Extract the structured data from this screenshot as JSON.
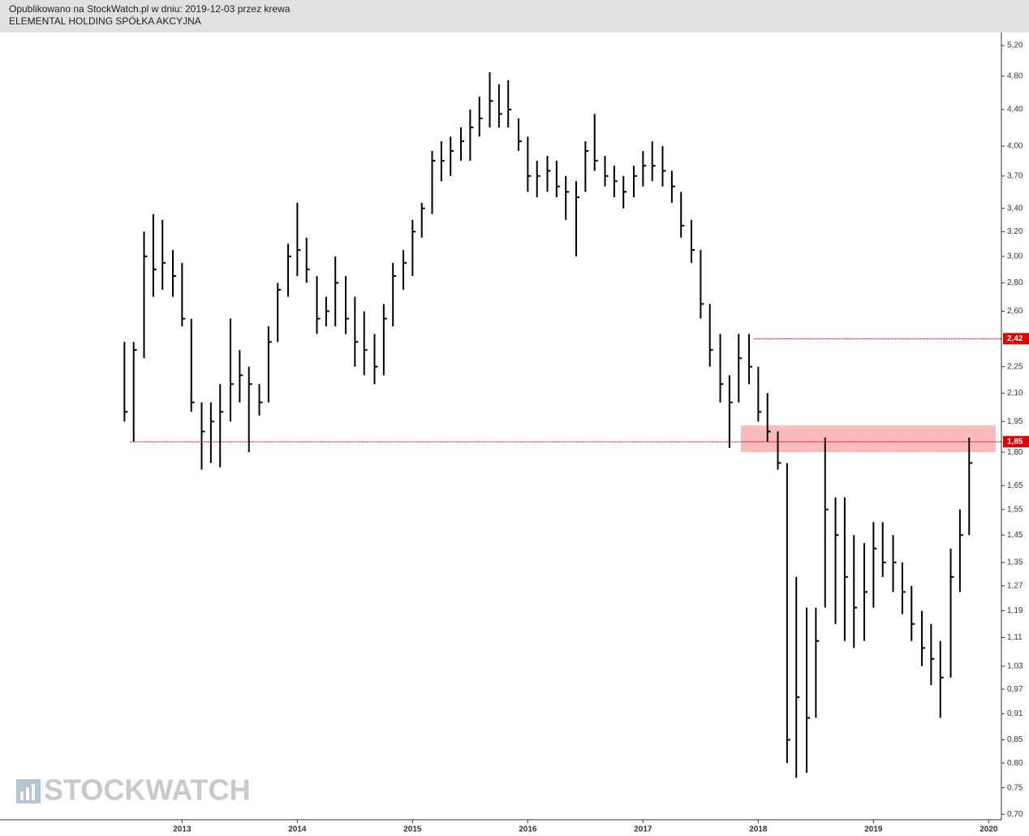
{
  "header": {
    "published": "Opublikowano na StockWatch.pl w dniu: 2019-12-03 przez krewa",
    "instrument": "ELEMENTAL HOLDING SPÓŁKA AKCYJNA"
  },
  "watermark": "STOCKWATCH",
  "chart_data": {
    "type": "hlc",
    "log_scale": true,
    "color": "#000000",
    "xlim": [
      2011.42,
      2020.11
    ],
    "xticks": [
      2013,
      2014,
      2015,
      2016,
      2017,
      2018,
      2019,
      2020
    ],
    "ylim": [
      0.69,
      5.38
    ],
    "yticks": [
      {
        "value": 5.2,
        "label": "5,20"
      },
      {
        "value": 4.8,
        "label": "4,80"
      },
      {
        "value": 4.4,
        "label": "4,40"
      },
      {
        "value": 4.0,
        "label": "4,00"
      },
      {
        "value": 3.7,
        "label": "3,70"
      },
      {
        "value": 3.4,
        "label": "3,40"
      },
      {
        "value": 3.2,
        "label": "3,20"
      },
      {
        "value": 3.0,
        "label": "3,00"
      },
      {
        "value": 2.8,
        "label": "2,80"
      },
      {
        "value": 2.6,
        "label": "2,60"
      },
      {
        "value": 2.25,
        "label": "2,25"
      },
      {
        "value": 2.1,
        "label": "2,10"
      },
      {
        "value": 1.95,
        "label": "1,95"
      },
      {
        "value": 1.8,
        "label": "1,80"
      },
      {
        "value": 1.65,
        "label": "1,65"
      },
      {
        "value": 1.55,
        "label": "1,55"
      },
      {
        "value": 1.45,
        "label": "1,45"
      },
      {
        "value": 1.35,
        "label": "1,35"
      },
      {
        "value": 1.27,
        "label": "1,27"
      },
      {
        "value": 1.19,
        "label": "1,19"
      },
      {
        "value": 1.11,
        "label": "1,11"
      },
      {
        "value": 1.03,
        "label": "1,03"
      },
      {
        "value": 0.97,
        "label": "0,97"
      },
      {
        "value": 0.91,
        "label": "0,91"
      },
      {
        "value": 0.85,
        "label": "0,85"
      },
      {
        "value": 0.8,
        "label": "0,80"
      },
      {
        "value": 0.75,
        "label": "0,75"
      },
      {
        "value": 0.7,
        "label": "0,70"
      }
    ],
    "x": [
      2012.5,
      2012.58,
      2012.67,
      2012.75,
      2012.83,
      2012.92,
      2013.0,
      2013.08,
      2013.17,
      2013.25,
      2013.33,
      2013.42,
      2013.5,
      2013.58,
      2013.67,
      2013.75,
      2013.83,
      2013.92,
      2014.0,
      2014.08,
      2014.17,
      2014.25,
      2014.33,
      2014.42,
      2014.5,
      2014.58,
      2014.67,
      2014.75,
      2014.83,
      2014.92,
      2015.0,
      2015.08,
      2015.17,
      2015.25,
      2015.33,
      2015.42,
      2015.5,
      2015.58,
      2015.67,
      2015.75,
      2015.83,
      2015.92,
      2016.0,
      2016.08,
      2016.17,
      2016.25,
      2016.33,
      2016.42,
      2016.5,
      2016.58,
      2016.67,
      2016.75,
      2016.83,
      2016.92,
      2017.0,
      2017.08,
      2017.17,
      2017.25,
      2017.33,
      2017.42,
      2017.5,
      2017.58,
      2017.67,
      2017.75,
      2017.83,
      2017.92,
      2018.0,
      2018.08,
      2018.17,
      2018.25,
      2018.33,
      2018.42,
      2018.5,
      2018.58,
      2018.67,
      2018.75,
      2018.83,
      2018.92,
      2019.0,
      2019.08,
      2019.17,
      2019.25,
      2019.33,
      2019.42,
      2019.5,
      2019.58,
      2019.67,
      2019.75,
      2019.83
    ],
    "high": [
      2.4,
      2.4,
      3.2,
      3.35,
      3.3,
      3.05,
      2.95,
      2.55,
      2.05,
      2.05,
      2.15,
      2.55,
      2.35,
      2.25,
      2.15,
      2.5,
      2.8,
      3.1,
      3.45,
      3.15,
      2.85,
      2.7,
      3.0,
      2.85,
      2.7,
      2.6,
      2.45,
      2.65,
      2.95,
      3.05,
      3.3,
      3.45,
      3.95,
      4.05,
      4.1,
      4.2,
      4.4,
      4.55,
      4.85,
      4.7,
      4.75,
      4.3,
      4.1,
      3.85,
      3.9,
      3.85,
      3.7,
      3.65,
      4.05,
      4.35,
      3.9,
      3.8,
      3.7,
      3.8,
      3.95,
      4.05,
      4.0,
      3.75,
      3.55,
      3.3,
      3.05,
      2.65,
      2.45,
      2.2,
      2.45,
      2.45,
      2.25,
      2.1,
      1.9,
      1.75,
      1.3,
      1.2,
      1.2,
      1.87,
      1.6,
      1.6,
      1.45,
      1.42,
      1.5,
      1.5,
      1.45,
      1.35,
      1.27,
      1.19,
      1.15,
      1.1,
      1.4,
      1.55,
      1.87
    ],
    "low": [
      1.95,
      1.85,
      2.3,
      2.7,
      2.75,
      2.7,
      2.5,
      2.0,
      1.72,
      1.75,
      1.73,
      1.95,
      2.05,
      1.8,
      1.98,
      2.05,
      2.4,
      2.7,
      2.85,
      2.8,
      2.45,
      2.5,
      2.5,
      2.45,
      2.25,
      2.2,
      2.15,
      2.2,
      2.5,
      2.75,
      2.85,
      3.15,
      3.35,
      3.65,
      3.7,
      3.85,
      3.85,
      4.1,
      4.2,
      4.2,
      4.2,
      3.95,
      3.55,
      3.5,
      3.55,
      3.5,
      3.3,
      3.0,
      3.55,
      3.75,
      3.6,
      3.5,
      3.4,
      3.5,
      3.6,
      3.65,
      3.6,
      3.45,
      3.15,
      2.95,
      2.55,
      2.25,
      2.05,
      1.82,
      2.05,
      2.15,
      1.95,
      1.85,
      1.72,
      0.8,
      0.77,
      0.78,
      0.9,
      1.2,
      1.15,
      1.1,
      1.08,
      1.1,
      1.2,
      1.3,
      1.25,
      1.18,
      1.1,
      1.03,
      0.98,
      0.9,
      1.0,
      1.25,
      1.45
    ],
    "close": [
      2.0,
      2.35,
      3.0,
      2.9,
      2.95,
      2.85,
      2.55,
      2.05,
      1.9,
      1.95,
      2.0,
      2.15,
      2.2,
      2.15,
      2.05,
      2.4,
      2.75,
      3.0,
      3.05,
      2.9,
      2.55,
      2.6,
      2.8,
      2.55,
      2.4,
      2.35,
      2.25,
      2.55,
      2.85,
      2.95,
      3.2,
      3.4,
      3.85,
      3.85,
      3.95,
      4.05,
      4.2,
      4.3,
      4.5,
      4.35,
      4.4,
      4.05,
      3.7,
      3.7,
      3.75,
      3.6,
      3.55,
      3.5,
      3.95,
      3.85,
      3.7,
      3.65,
      3.55,
      3.7,
      3.8,
      3.8,
      3.75,
      3.6,
      3.25,
      3.05,
      2.65,
      2.35,
      2.15,
      2.05,
      2.3,
      2.25,
      2.0,
      1.9,
      1.75,
      0.85,
      0.95,
      0.9,
      1.1,
      1.55,
      1.45,
      1.3,
      1.2,
      1.25,
      1.4,
      1.35,
      1.35,
      1.25,
      1.15,
      1.08,
      1.05,
      1.0,
      1.3,
      1.45,
      1.75
    ],
    "hlines": [
      {
        "value": 2.42,
        "label": "2,42",
        "x_start": 2017.96
      },
      {
        "value": 1.85,
        "label": "1,85",
        "x_start": 2012.55
      }
    ],
    "zone": {
      "y_from": 1.8,
      "y_to": 1.93,
      "x_start": 2017.85,
      "color": "#f4a4a4"
    }
  }
}
